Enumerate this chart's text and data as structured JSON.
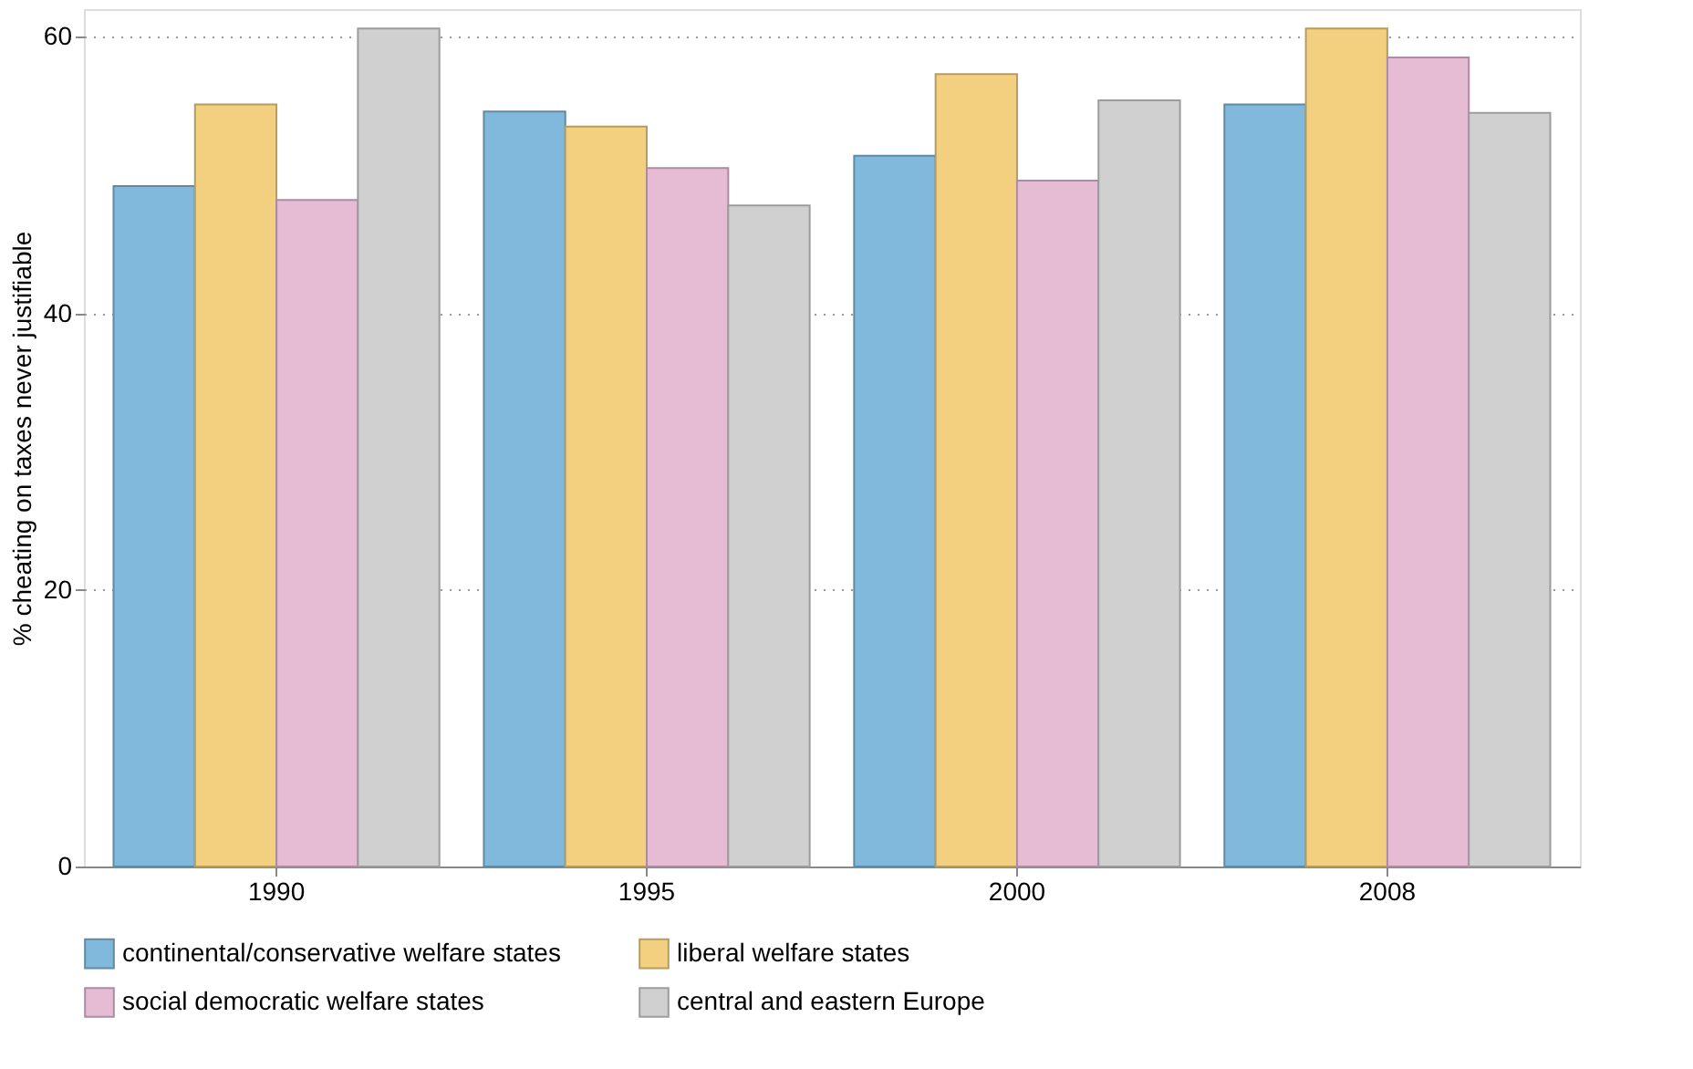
{
  "chart_data": {
    "type": "bar",
    "ylabel": "% cheating on taxes never justifiable",
    "categories": [
      "1990",
      "1995",
      "2000",
      "2008"
    ],
    "series": [
      {
        "name": "continental/conservative welfare states",
        "color": "#80b9db",
        "values": [
          49.2,
          54.6,
          51.4,
          55.1
        ]
      },
      {
        "name": "liberal welfare states",
        "color": "#f3d07f",
        "values": [
          55.1,
          53.5,
          57.3,
          60.6
        ]
      },
      {
        "name": "social democratic welfare states",
        "color": "#e6bbd4",
        "values": [
          48.2,
          50.5,
          49.6,
          58.5
        ]
      },
      {
        "name": "central and eastern Europe",
        "color": "#d0d0d0",
        "values": [
          60.6,
          47.8,
          55.4,
          54.5
        ]
      }
    ],
    "ylim": [
      0,
      62
    ],
    "yticks": [
      0,
      20,
      40,
      60
    ],
    "grid": "y",
    "legend": "bottom"
  }
}
